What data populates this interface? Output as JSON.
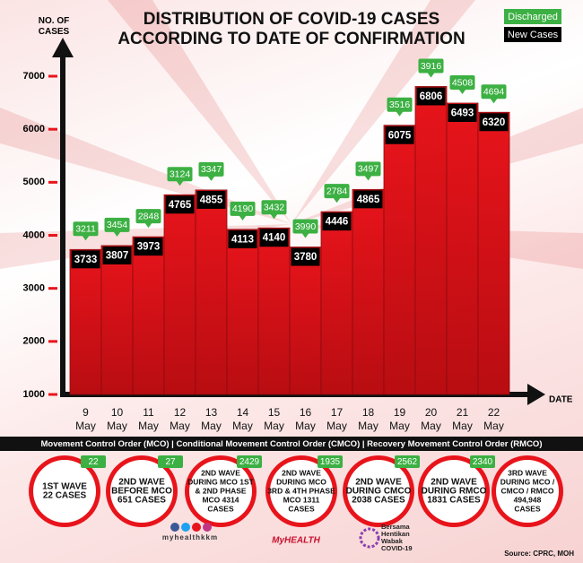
{
  "chart_data": {
    "type": "bar",
    "title": [
      "DISTRIBUTION OF COVID-19 CASES",
      "ACCORDING TO DATE OF CONFIRMATION"
    ],
    "y_label": "NO. OF CASES",
    "x_label": "DATE",
    "categories": [
      "9 May",
      "10 May",
      "11 May",
      "12 May",
      "13 May",
      "14 May",
      "15 May",
      "16 May",
      "17 May",
      "18 May",
      "19 May",
      "20 May",
      "21 May",
      "22 May"
    ],
    "series": [
      {
        "name": "New Cases",
        "color": "#000000",
        "values": [
          3733,
          3807,
          3973,
          4765,
          4855,
          4113,
          4140,
          3780,
          4446,
          4865,
          6075,
          6806,
          6493,
          6320
        ]
      },
      {
        "name": "Discharged",
        "color": "#3cb043",
        "values": [
          3211,
          3454,
          2848,
          3124,
          3347,
          4190,
          3432,
          3990,
          2784,
          3497,
          3516,
          3916,
          4508,
          4694
        ]
      }
    ],
    "bar_color": "#e8141b",
    "ylim": [
      1000,
      7000
    ],
    "yticks": [
      1000,
      2000,
      3000,
      4000,
      5000,
      6000,
      7000
    ]
  },
  "banner": "Movement Control Order (MCO) | Conditional Movement Control Order (CMCO) | Recovery Movement Control Order (RMCO)",
  "waves": [
    {
      "badge": "22",
      "lines": [
        "1ST WAVE",
        "22 CASES"
      ]
    },
    {
      "badge": "27",
      "lines": [
        "2ND WAVE",
        "BEFORE MCO",
        "651 CASES"
      ]
    },
    {
      "badge": "2429",
      "lines": [
        "2ND WAVE",
        "DURING MCO 1ST",
        "& 2ND PHASE",
        "MCO 4314",
        "CASES"
      ]
    },
    {
      "badge": "1935",
      "lines": [
        "2ND WAVE",
        "DURING MCO",
        "3RD & 4TH PHASE",
        "MCO 1311",
        "CASES"
      ]
    },
    {
      "badge": "2562",
      "lines": [
        "2ND WAVE",
        "DURING CMCO",
        "2038 CASES"
      ]
    },
    {
      "badge": "2340",
      "lines": [
        "2ND WAVE",
        "DURING RMCO",
        "1831 CASES"
      ]
    },
    {
      "badge": null,
      "lines": [
        "3RD WAVE",
        "DURING MCO /",
        "CMCO / RMCO",
        "494,948",
        "CASES"
      ]
    }
  ],
  "footer": {
    "handle": "myhealthkkm",
    "logo": "MyHEALTH",
    "campaign": [
      "Bersama",
      "Hentikan",
      "Wabak",
      "COVID-19"
    ],
    "source": "Source: CPRC, MOH"
  }
}
